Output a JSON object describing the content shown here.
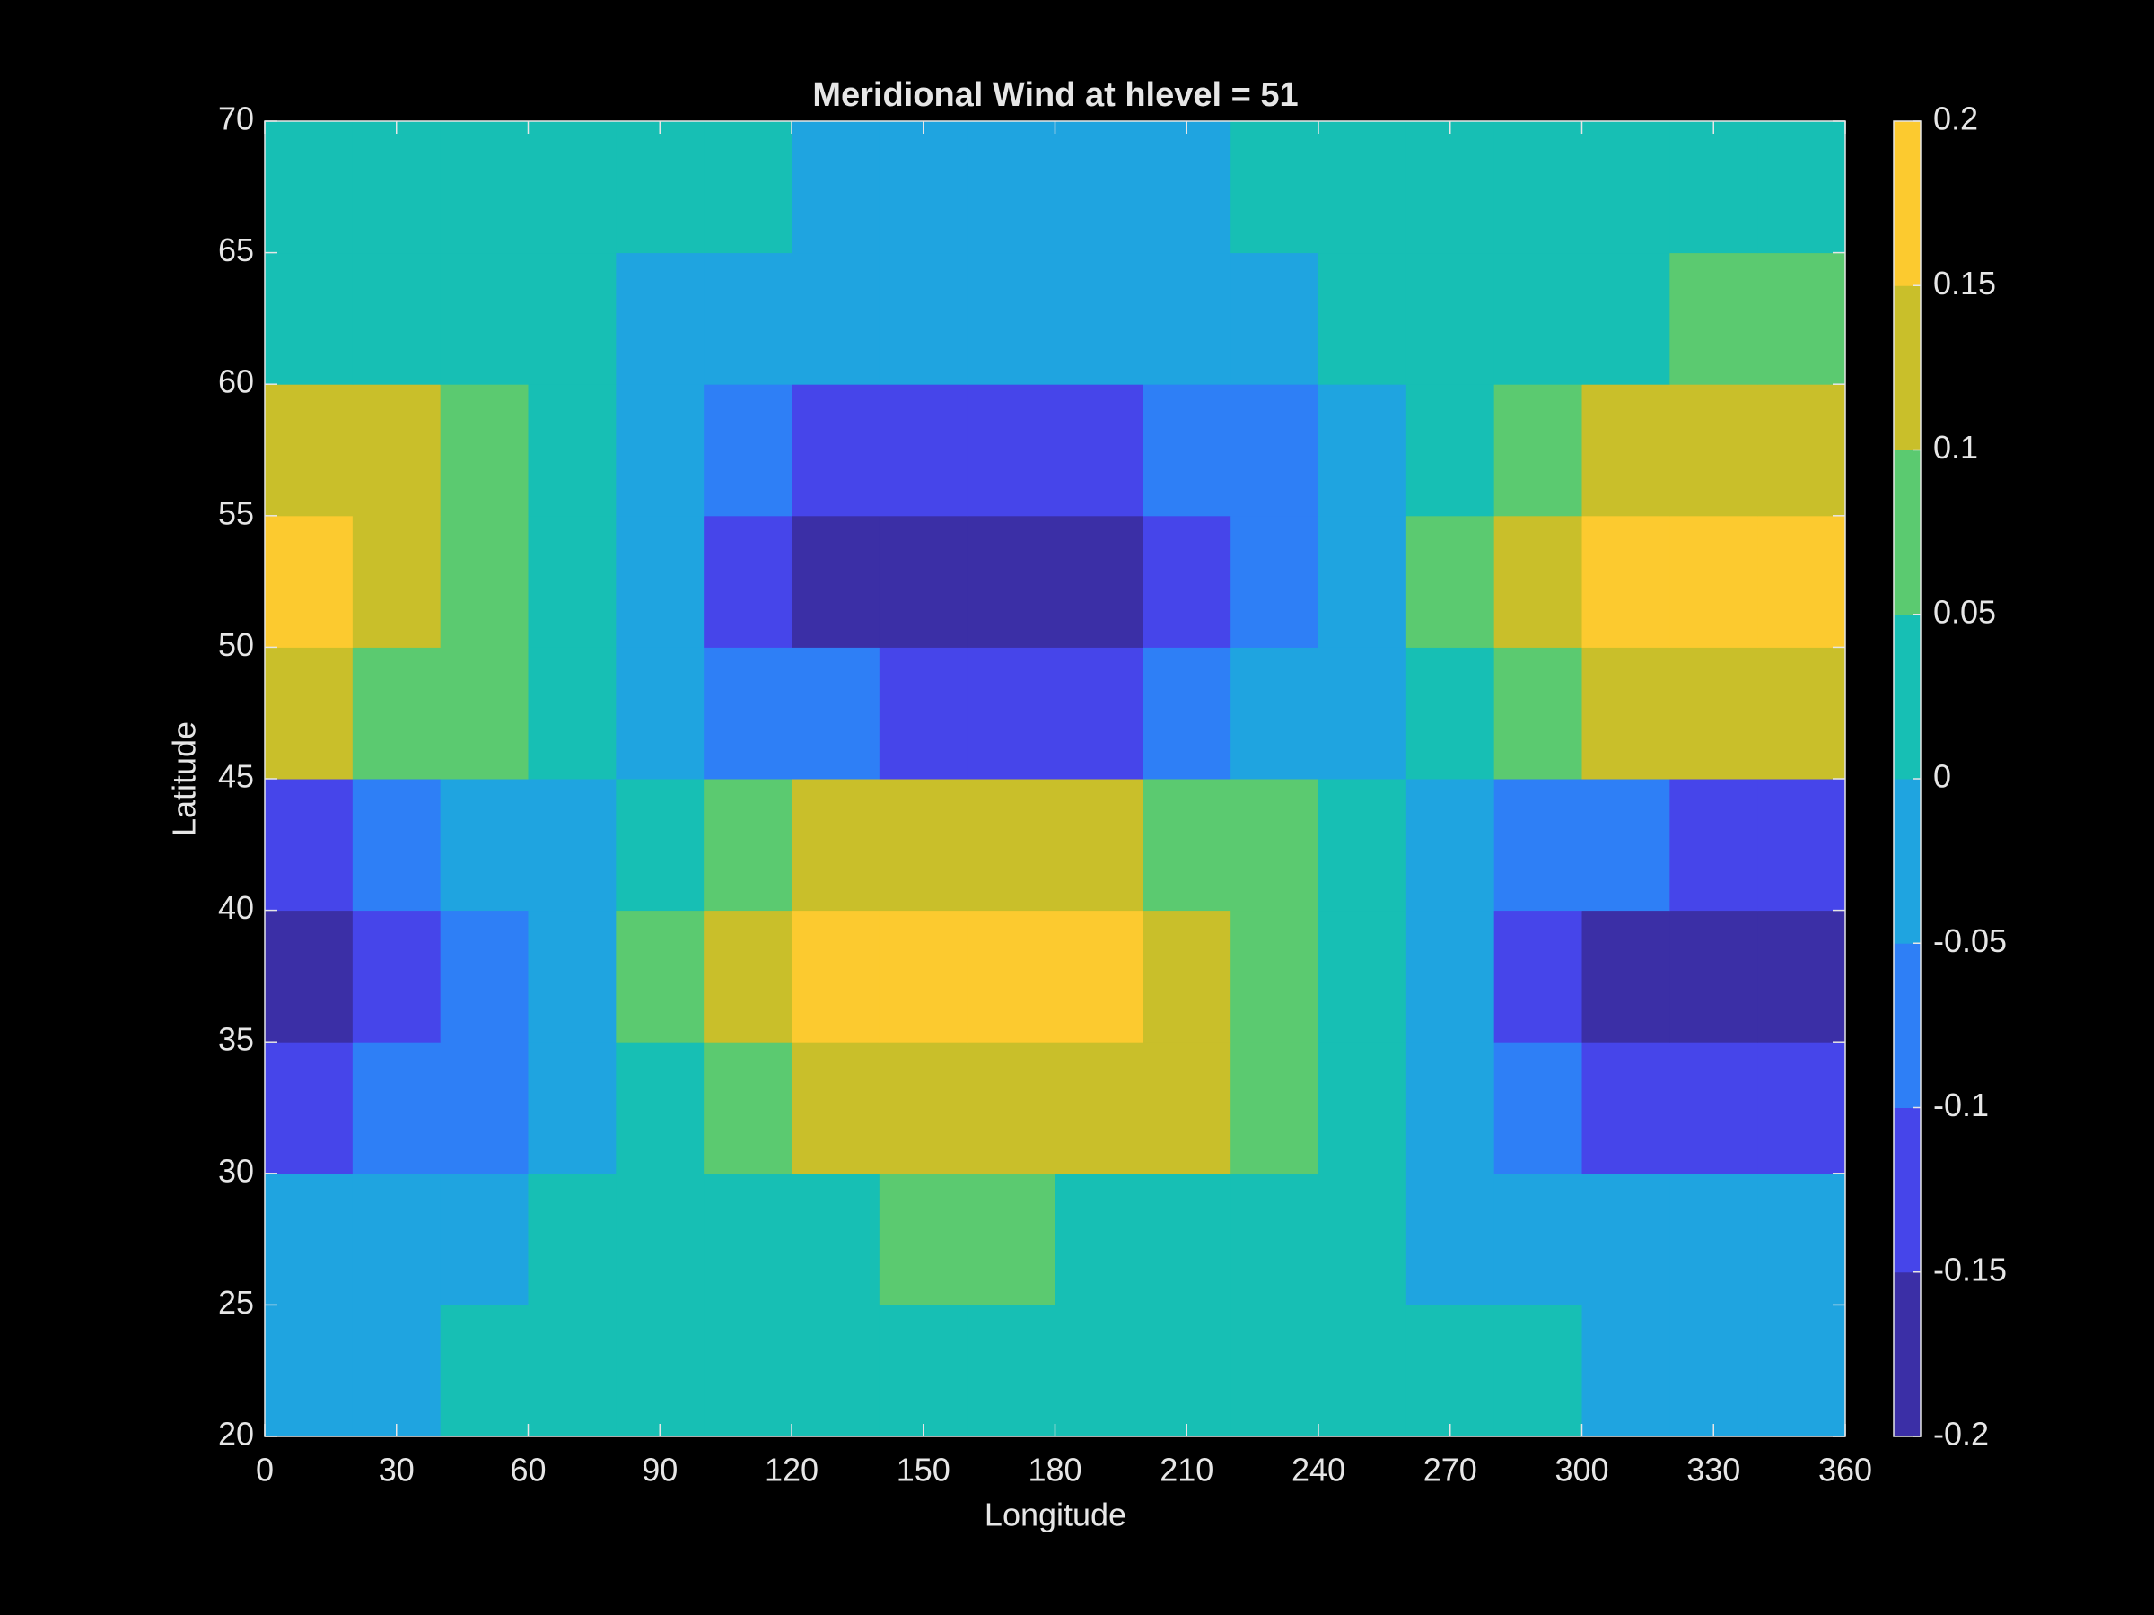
{
  "chart_data": {
    "type": "contourf",
    "title": "Meridional Wind at hlevel = 51",
    "xlabel": "Longitude",
    "ylabel": "Latitude",
    "x": [
      10,
      30,
      50,
      70,
      90,
      110,
      130,
      150,
      170,
      190,
      210,
      230,
      250,
      270,
      290,
      310,
      330,
      350
    ],
    "y": [
      22.5,
      27.5,
      32.5,
      37.5,
      42.5,
      47.5,
      52.5,
      57.5,
      62.5,
      67.5
    ],
    "z": [
      [
        -0.01,
        -0.01,
        0,
        0,
        0,
        0,
        0.01,
        0.01,
        0.01,
        0.01,
        0.01,
        0,
        0,
        0,
        0,
        -0.01,
        -0.01,
        -0.01
      ],
      [
        -0.04,
        -0.03,
        -0.02,
        0,
        0.01,
        0.03,
        0.04,
        0.05,
        0.05,
        0.04,
        0.03,
        0.02,
        0,
        -0.01,
        -0.03,
        -0.04,
        -0.05,
        -0.05
      ],
      [
        -0.13,
        -0.1,
        -0.06,
        -0.01,
        0.04,
        0.08,
        0.12,
        0.14,
        0.15,
        0.13,
        0.1,
        0.06,
        0.01,
        -0.04,
        -0.08,
        -0.12,
        -0.14,
        -0.15
      ],
      [
        -0.18,
        -0.14,
        -0.08,
        -0.02,
        0.05,
        0.11,
        0.16,
        0.19,
        0.2,
        0.18,
        0.14,
        0.08,
        0.02,
        -0.05,
        -0.11,
        -0.16,
        -0.19,
        -0.2
      ],
      [
        -0.11,
        -0.09,
        -0.05,
        -0.01,
        0.03,
        0.07,
        0.1,
        0.12,
        0.12,
        0.11,
        0.09,
        0.05,
        0.01,
        -0.03,
        -0.07,
        -0.1,
        -0.12,
        -0.12
      ],
      [
        0.11,
        0.09,
        0.05,
        0.01,
        -0.03,
        -0.07,
        -0.1,
        -0.12,
        -0.12,
        -0.11,
        -0.09,
        -0.05,
        -0.01,
        0.03,
        0.07,
        0.1,
        0.12,
        0.12
      ],
      [
        0.18,
        0.14,
        0.08,
        0.02,
        -0.05,
        -0.11,
        -0.16,
        -0.19,
        -0.2,
        -0.18,
        -0.14,
        -0.08,
        -0.02,
        0.05,
        0.11,
        0.16,
        0.19,
        0.2
      ],
      [
        0.13,
        0.1,
        0.06,
        0.01,
        -0.04,
        -0.08,
        -0.12,
        -0.14,
        -0.15,
        -0.13,
        -0.1,
        -0.06,
        -0.01,
        0.04,
        0.08,
        0.12,
        0.14,
        0.15
      ],
      [
        0.04,
        0.03,
        0.02,
        0,
        -0.01,
        -0.03,
        -0.04,
        -0.05,
        -0.05,
        -0.04,
        -0.03,
        -0.02,
        0,
        0.01,
        0.03,
        0.04,
        0.05,
        0.05
      ],
      [
        0.01,
        0.01,
        0,
        0,
        0,
        0,
        -0.01,
        -0.01,
        -0.01,
        -0.01,
        -0.01,
        0,
        0,
        0,
        0,
        0.01,
        0.01,
        0.01
      ]
    ],
    "xlim": [
      0,
      360
    ],
    "xticks": [
      0,
      30,
      60,
      90,
      120,
      150,
      180,
      210,
      240,
      270,
      300,
      330,
      360
    ],
    "ylim": [
      20,
      70
    ],
    "yticks": [
      20,
      25,
      30,
      35,
      40,
      45,
      50,
      55,
      60,
      65,
      70
    ],
    "clim": [
      -0.2,
      0.2
    ],
    "cticks": [
      -0.2,
      -0.15,
      -0.1,
      -0.05,
      0,
      0.05,
      0.1,
      0.15,
      0.2
    ],
    "colors": [
      "#3b2fa6",
      "#4645ea",
      "#2e7ff6",
      "#1fa4e0",
      "#17bfb4",
      "#5bca70",
      "#c9bf2a",
      "#fcca2f"
    ]
  }
}
